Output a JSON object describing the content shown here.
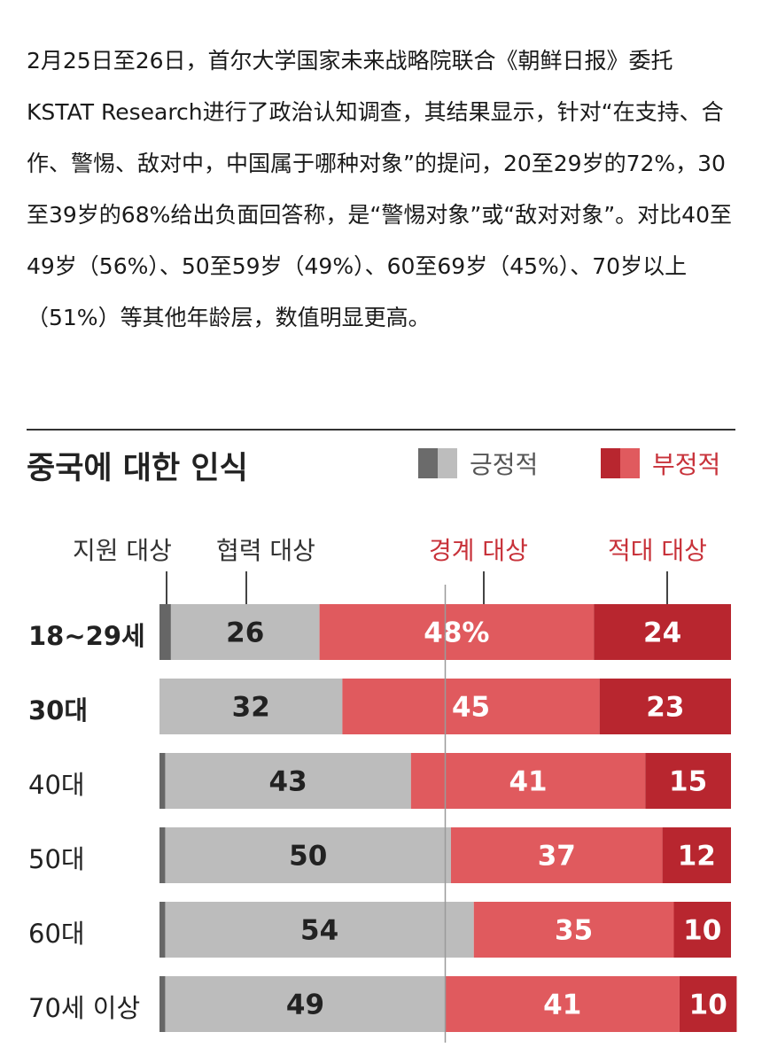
{
  "intro_text": "2月25日至26日，首尔大学国家未来战略院联合《朝鲜日报》委托KSTAT Research进行了政治认知调查，其结果显示，针对“在支持、合作、警惕、敌对中，中国属于哪种对象”的提问，20至29岁的72%，30至39岁的68%给出负面回答称，是“警惕对象”或“敌对对象”。对比40至49岁（56%）、50至59岁（49%）、60至69岁（45%）、70岁以上（51%）等其他年龄层，数值明显更高。",
  "chart_data": {
    "type": "bar",
    "orientation": "horizontal-stacked-100",
    "title": "중국에 대한 인식",
    "legend": [
      {
        "name": "긍정적",
        "colors": [
          "#6b6b6b",
          "#bdbdbd"
        ]
      },
      {
        "name": "부정적",
        "colors": [
          "#b8262f",
          "#e05a5e"
        ]
      }
    ],
    "segment_labels": [
      "지원 대상",
      "협력 대상",
      "경계 대상",
      "적대 대상"
    ],
    "segment_colors": [
      "#666666",
      "#bcbcbc",
      "#e05a5e",
      "#b8262f"
    ],
    "categories": [
      "18~29세",
      "30대",
      "40대",
      "50대",
      "60대",
      "70세 이상"
    ],
    "bold_categories": [
      "18~29세",
      "30대"
    ],
    "series": [
      {
        "name": "지원 대상",
        "values": [
          2,
          0,
          1,
          1,
          1,
          1
        ]
      },
      {
        "name": "협력 대상",
        "values": [
          26,
          32,
          43,
          50,
          54,
          49
        ]
      },
      {
        "name": "경계 대상",
        "values": [
          48,
          45,
          41,
          37,
          35,
          41
        ]
      },
      {
        "name": "적대 대상",
        "values": [
          24,
          23,
          15,
          12,
          10,
          10
        ]
      }
    ],
    "data_labels": [
      [
        "",
        "26",
        "48%",
        "24"
      ],
      [
        "",
        "32",
        "45",
        "23"
      ],
      [
        "",
        "43",
        "41",
        "15"
      ],
      [
        "",
        "50",
        "37",
        "12"
      ],
      [
        "",
        "54",
        "35",
        "10"
      ],
      [
        "",
        "49",
        "41",
        "10"
      ]
    ],
    "reference_line": 50,
    "xlim": [
      0,
      100
    ]
  }
}
